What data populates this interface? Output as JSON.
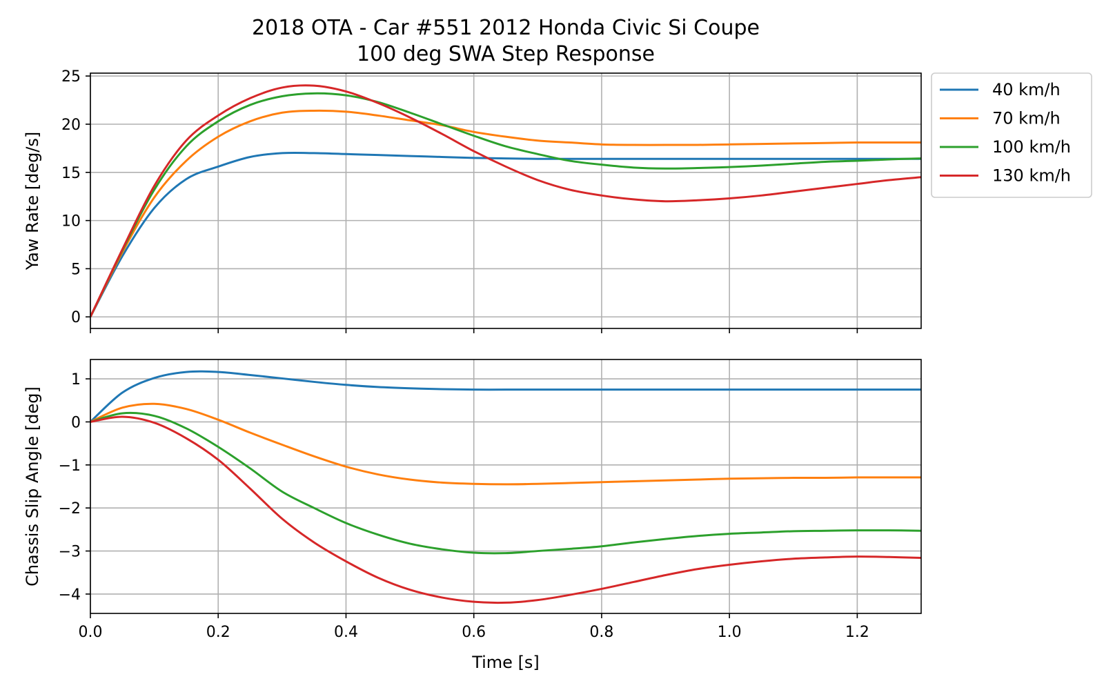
{
  "chart_data": {
    "type": "line",
    "title": "2018 OTA - Car #551 2012 Honda Civic Si Coupe",
    "subtitle": "100 deg SWA Step Response",
    "xlabel": "Time [s]",
    "xlim": [
      0,
      1.3
    ],
    "x_ticks": [
      0.0,
      0.2,
      0.4,
      0.6,
      0.8,
      1.0,
      1.2
    ],
    "x_tick_labels": [
      "0.0",
      "0.2",
      "0.4",
      "0.6",
      "0.8",
      "1.0",
      "1.2"
    ],
    "grid": true,
    "legend_placement": "outside-top-right",
    "legend": [
      "40 km/h",
      "70 km/h",
      "100 km/h",
      "130 km/h"
    ],
    "colors": {
      "40 km/h": "#1f77b4",
      "70 km/h": "#ff7f0e",
      "100 km/h": "#2ca02c",
      "130 km/h": "#d62728"
    },
    "x": [
      0,
      0.05,
      0.1,
      0.15,
      0.2,
      0.25,
      0.3,
      0.35,
      0.4,
      0.45,
      0.5,
      0.55,
      0.6,
      0.65,
      0.7,
      0.75,
      0.8,
      0.85,
      0.9,
      0.95,
      1.0,
      1.05,
      1.1,
      1.15,
      1.2,
      1.25,
      1.3
    ],
    "panels": [
      {
        "ylabel": "Yaw Rate [deg/s]",
        "ylim": [
          -1.2,
          25.3
        ],
        "y_ticks": [
          0,
          5,
          10,
          15,
          20,
          25
        ],
        "y_tick_labels": [
          "0",
          "5",
          "10",
          "15",
          "20",
          "25"
        ],
        "series": [
          {
            "name": "40 km/h",
            "values": [
              0,
              6.3,
              11.3,
              14.3,
              15.6,
              16.6,
              17.0,
              17.0,
              16.9,
              16.8,
              16.7,
              16.6,
              16.5,
              16.45,
              16.4,
              16.4,
              16.4,
              16.4,
              16.4,
              16.4,
              16.4,
              16.4,
              16.4,
              16.4,
              16.4,
              16.4,
              16.4
            ]
          },
          {
            "name": "70 km/h",
            "values": [
              0,
              6.7,
              12.4,
              16.2,
              18.7,
              20.3,
              21.2,
              21.4,
              21.3,
              20.9,
              20.4,
              19.9,
              19.2,
              18.7,
              18.3,
              18.1,
              17.9,
              17.85,
              17.85,
              17.85,
              17.9,
              17.95,
              18.0,
              18.05,
              18.1,
              18.1,
              18.1
            ]
          },
          {
            "name": "100 km/h",
            "values": [
              0,
              6.9,
              13.2,
              17.7,
              20.3,
              22.0,
              22.9,
              23.2,
              23.0,
              22.3,
              21.2,
              20.0,
              18.8,
              17.7,
              16.9,
              16.2,
              15.8,
              15.5,
              15.4,
              15.45,
              15.55,
              15.7,
              15.9,
              16.1,
              16.2,
              16.35,
              16.45
            ]
          },
          {
            "name": "130 km/h",
            "values": [
              0,
              7.0,
              13.6,
              18.3,
              20.9,
              22.7,
              23.8,
              24.0,
              23.4,
              22.2,
              20.7,
              19.0,
              17.2,
              15.6,
              14.2,
              13.2,
              12.6,
              12.2,
              12.0,
              12.1,
              12.3,
              12.6,
              13.0,
              13.4,
              13.8,
              14.2,
              14.5
            ]
          }
        ]
      },
      {
        "ylabel": "Chassis Slip Angle [deg]",
        "ylim": [
          -4.45,
          1.45
        ],
        "y_ticks": [
          1,
          0,
          -1,
          -2,
          -3,
          -4
        ],
        "y_tick_labels": [
          "1",
          "0",
          "−1",
          "−2",
          "−3",
          "−4"
        ],
        "series": [
          {
            "name": "40 km/h",
            "values": [
              0,
              0.68,
              1.02,
              1.16,
              1.16,
              1.09,
              1.01,
              0.93,
              0.86,
              0.81,
              0.78,
              0.76,
              0.75,
              0.75,
              0.75,
              0.75,
              0.75,
              0.75,
              0.75,
              0.75,
              0.75,
              0.75,
              0.75,
              0.75,
              0.75,
              0.75,
              0.75
            ]
          },
          {
            "name": "70 km/h",
            "values": [
              0,
              0.33,
              0.42,
              0.3,
              0.05,
              -0.25,
              -0.53,
              -0.8,
              -1.04,
              -1.22,
              -1.34,
              -1.41,
              -1.44,
              -1.45,
              -1.44,
              -1.42,
              -1.4,
              -1.38,
              -1.36,
              -1.34,
              -1.32,
              -1.31,
              -1.3,
              -1.3,
              -1.29,
              -1.29,
              -1.29
            ]
          },
          {
            "name": "100 km/h",
            "values": [
              0,
              0.2,
              0.14,
              -0.15,
              -0.58,
              -1.08,
              -1.62,
              -2.0,
              -2.35,
              -2.62,
              -2.83,
              -2.96,
              -3.04,
              -3.05,
              -3.0,
              -2.95,
              -2.89,
              -2.8,
              -2.72,
              -2.65,
              -2.6,
              -2.57,
              -2.54,
              -2.53,
              -2.52,
              -2.52,
              -2.53
            ]
          },
          {
            "name": "130 km/h",
            "values": [
              0,
              0.12,
              -0.02,
              -0.38,
              -0.88,
              -1.55,
              -2.25,
              -2.8,
              -3.24,
              -3.62,
              -3.9,
              -4.08,
              -4.18,
              -4.2,
              -4.14,
              -4.02,
              -3.88,
              -3.72,
              -3.56,
              -3.42,
              -3.32,
              -3.24,
              -3.18,
              -3.15,
              -3.13,
              -3.14,
              -3.16
            ]
          }
        ]
      }
    ]
  }
}
